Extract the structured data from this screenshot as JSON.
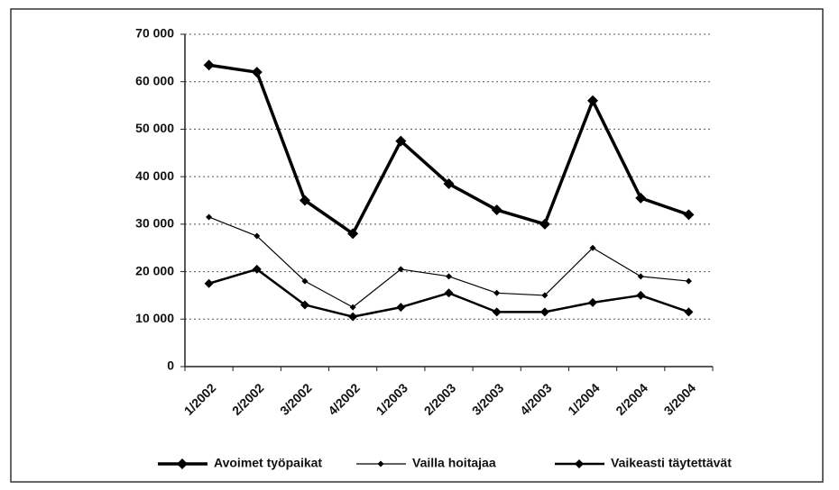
{
  "chart_data": {
    "type": "line",
    "categories": [
      "1/2002",
      "2/2002",
      "3/2002",
      "4/2002",
      "1/2003",
      "2/2003",
      "3/2003",
      "4/2003",
      "1/2004",
      "2/2004",
      "3/2004"
    ],
    "series": [
      {
        "name": "Avoimet työpaikat",
        "color": "#000000",
        "values": [
          63500,
          62000,
          35000,
          28000,
          47500,
          38500,
          33000,
          30000,
          56000,
          35500,
          32000
        ]
      },
      {
        "name": "Vailla hoitajaa",
        "color": "#000000",
        "values": [
          31500,
          27500,
          18000,
          12500,
          20500,
          19000,
          15500,
          15000,
          25000,
          19000,
          18000
        ]
      },
      {
        "name": "Vaikeasti täytettävät",
        "color": "#000000",
        "values": [
          17500,
          20500,
          13000,
          10500,
          12500,
          15500,
          11500,
          11500,
          13500,
          15000,
          11500
        ]
      }
    ],
    "ylim": [
      0,
      70000
    ],
    "yticks": [
      0,
      {
        "value": 10000,
        "label": "10 000"
      },
      {
        "value": 20000,
        "label": "20 000"
      },
      {
        "value": 30000,
        "label": "30 000"
      },
      {
        "value": 40000,
        "label": "40 000"
      },
      {
        "value": 50000,
        "label": "50 000"
      },
      {
        "value": 60000,
        "label": "60 000"
      },
      {
        "value": 70000,
        "label": "70 000"
      }
    ],
    "grid": true,
    "legend": "bottom"
  }
}
